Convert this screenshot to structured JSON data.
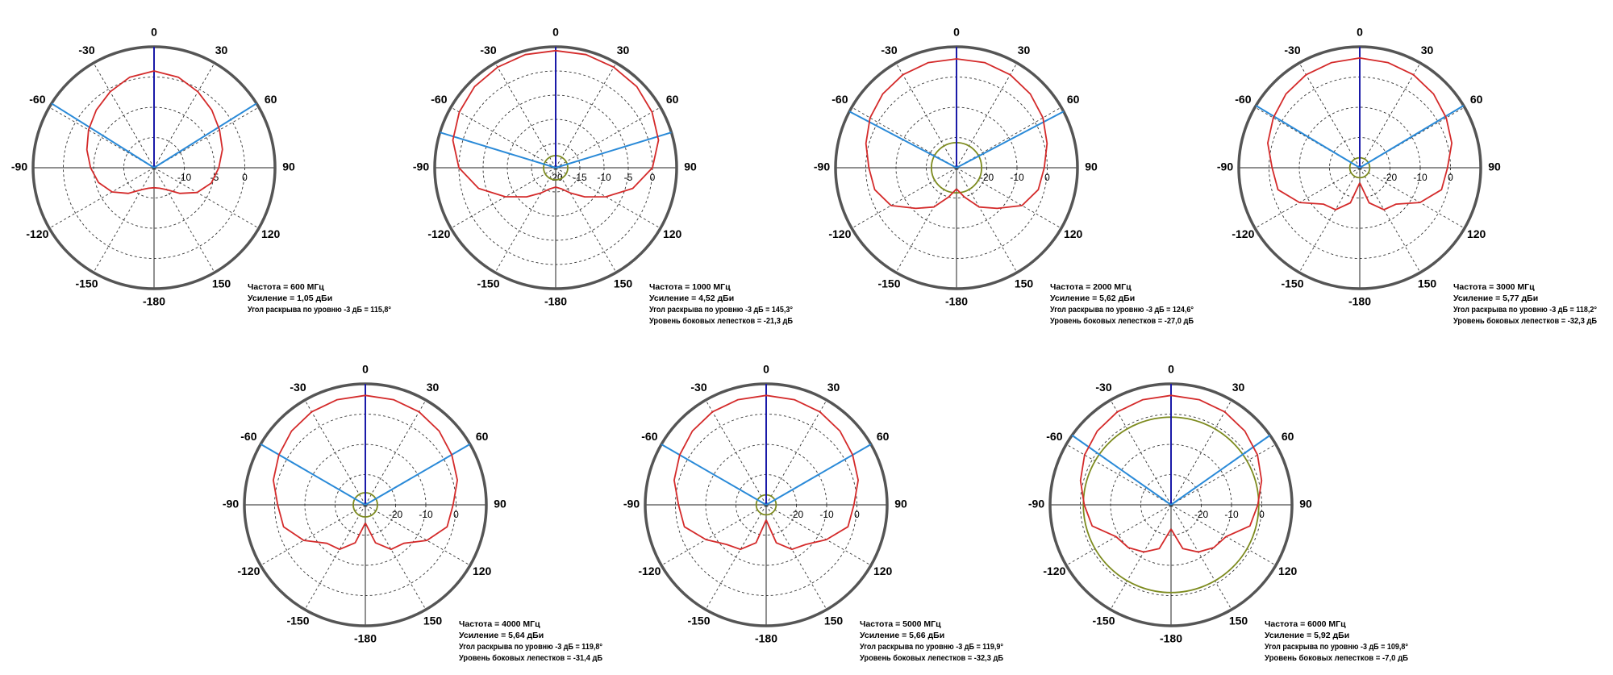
{
  "chart_data": [
    {
      "type": "polar",
      "thetaticks": [
        0,
        30,
        60,
        90,
        120,
        150,
        -180,
        -150,
        -120,
        -90,
        -60,
        -30
      ],
      "rlim": [
        -15,
        5
      ],
      "rticks": [
        -10,
        -5,
        0
      ],
      "series": [
        {
          "color": "#d42a2a",
          "theta": [
            -180,
            -165,
            -150,
            -135,
            -120,
            -105,
            -90,
            -75,
            -60,
            -45,
            -30,
            -15,
            0,
            15,
            30,
            45,
            60,
            75,
            90,
            105,
            120,
            135,
            150,
            165,
            180
          ],
          "values": [
            -11.7,
            -11.5,
            -10.8,
            -9,
            -7,
            -5.5,
            -4.5,
            -3.5,
            -2.5,
            -1.5,
            -0.5,
            0.5,
            1,
            0.5,
            -0.5,
            -1.5,
            -2.5,
            -3.3,
            -4.3,
            -5.2,
            -6.8,
            -9,
            -10.8,
            -11.5,
            -11.7
          ]
        }
      ],
      "lines": [
        {
          "color": "#1a1aa8",
          "angles": [
            0
          ]
        },
        {
          "color": "#2a8ad8",
          "angles": [
            -57.9,
            57.9
          ]
        }
      ],
      "annotations": [
        "Частота = 600 МГц",
        "Усиление = 1,05 дБи",
        "Угол раскрыва по уровню -3 дБ = 115,8°"
      ]
    },
    {
      "type": "polar",
      "thetaticks": [
        0,
        30,
        60,
        90,
        120,
        150,
        -180,
        -150,
        -120,
        -90,
        -60,
        -30
      ],
      "rlim": [
        -20,
        5
      ],
      "rticks": [
        -20,
        -15,
        -10,
        -5,
        0
      ],
      "series": [
        {
          "color": "#d42a2a",
          "theta": [
            -180,
            -165,
            -150,
            -135,
            -120,
            -105,
            -90,
            -75,
            -60,
            -45,
            -30,
            -15,
            0,
            15,
            30,
            45,
            60,
            75,
            90,
            105,
            120,
            135,
            150,
            165,
            180
          ],
          "values": [
            -16,
            -15.5,
            -14,
            -11.5,
            -8,
            -3.5,
            0,
            2,
            3,
            3.7,
            4,
            4.2,
            4.2,
            4.2,
            4,
            3.7,
            3,
            2,
            0,
            -3.5,
            -8,
            -11.5,
            -14,
            -15.5,
            -16
          ]
        }
      ],
      "lines": [
        {
          "color": "#1a1aa8",
          "angles": [
            0
          ]
        },
        {
          "color": "#2a8ad8",
          "angles": [
            -73,
            73
          ]
        }
      ],
      "ring": {
        "color": "#7d8b1f",
        "value": -17.5
      },
      "annotations": [
        "Частота = 1000 МГц",
        "Усиление = 4,52 дБи",
        "Угол раскрыва по уровню -3 дБ = 145,3°",
        "Уровень боковых лепестков = -21,3 дБ"
      ]
    },
    {
      "type": "polar",
      "thetaticks": [
        0,
        30,
        60,
        90,
        120,
        150,
        -180,
        -150,
        -120,
        -90,
        -60,
        -30
      ],
      "rlim": [
        -30,
        10
      ],
      "rticks": [
        -20,
        -10,
        0
      ],
      "series": [
        {
          "color": "#d42a2a",
          "theta": [
            -180,
            -165,
            -150,
            -135,
            -120,
            -105,
            -90,
            -75,
            -60,
            -45,
            -30,
            -15,
            0,
            15,
            30,
            45,
            60,
            75,
            90,
            105,
            120,
            135,
            150,
            165,
            180
          ],
          "values": [
            -23,
            -20,
            -15,
            -11,
            -5,
            -2,
            -1,
            1,
            3,
            4.5,
            5.5,
            6,
            6,
            6,
            5.5,
            4.5,
            3,
            1,
            -1,
            -2,
            -5,
            -11,
            -15,
            -20,
            -23
          ]
        }
      ],
      "lines": [
        {
          "color": "#1a1aa8",
          "angles": [
            0
          ]
        },
        {
          "color": "#2a8ad8",
          "angles": [
            -62.3,
            62.3
          ]
        }
      ],
      "ring": {
        "color": "#7d8b1f",
        "value": -21.7
      },
      "annotations": [
        "Частота = 2000 МГц",
        "Усиление = 5,62 дБи",
        "Угол раскрыва по уровню -3 дБ = 124,6°",
        "Уровень боковых лепестков = -27,0 дБ"
      ]
    },
    {
      "type": "polar",
      "thetaticks": [
        0,
        30,
        60,
        90,
        120,
        150,
        -180,
        -150,
        -120,
        -90,
        -60,
        -30
      ],
      "rlim": [
        -30,
        10
      ],
      "rticks": [
        -20,
        -10,
        0
      ],
      "series": [
        {
          "color": "#d42a2a",
          "theta": [
            -180,
            -165,
            -150,
            -135,
            -120,
            -105,
            -90,
            -75,
            -60,
            -45,
            -30,
            -15,
            0,
            15,
            30,
            45,
            60,
            75,
            90,
            105,
            120,
            135,
            150,
            165,
            180
          ],
          "values": [
            -25,
            -18,
            -14,
            -13,
            -7,
            -2,
            -1,
            1.5,
            3,
            4.5,
            5.5,
            6,
            6.3,
            6,
            5.5,
            4.5,
            3,
            1.5,
            -1,
            -2,
            -7,
            -13,
            -14,
            -18,
            -25
          ]
        }
      ],
      "lines": [
        {
          "color": "#1a1aa8",
          "angles": [
            0
          ]
        },
        {
          "color": "#2a8ad8",
          "angles": [
            -59.1,
            59.1
          ]
        }
      ],
      "ring": {
        "color": "#7d8b1f",
        "value": -26.7
      },
      "annotations": [
        "Частота = 3000 МГц",
        "Усиление = 5,77 дБи",
        "Угол раскрыва по уровню -3 дБ = 118,2°",
        "Уровень боковых лепестков = -32,3 дБ"
      ]
    },
    {
      "type": "polar",
      "thetaticks": [
        0,
        30,
        60,
        90,
        120,
        150,
        -180,
        -150,
        -120,
        -90,
        -60,
        -30
      ],
      "rlim": [
        -30,
        10
      ],
      "rticks": [
        -20,
        -10,
        0
      ],
      "series": [
        {
          "color": "#d42a2a",
          "theta": [
            -180,
            -165,
            -150,
            -135,
            -120,
            -105,
            -90,
            -75,
            -60,
            -45,
            -30,
            -15,
            0,
            15,
            30,
            45,
            60,
            75,
            90,
            105,
            120,
            135,
            150,
            165,
            180
          ],
          "values": [
            -24,
            -17,
            -13,
            -12,
            -6.5,
            -2,
            -1,
            1.5,
            3,
            4.5,
            5.5,
            6,
            6.2,
            6,
            5.5,
            4.5,
            3,
            1.5,
            -1,
            -2,
            -6.5,
            -12,
            -13,
            -17,
            -24
          ]
        }
      ],
      "lines": [
        {
          "color": "#1a1aa8",
          "angles": [
            0
          ]
        },
        {
          "color": "#2a8ad8",
          "angles": [
            -59.9,
            59.9
          ]
        }
      ],
      "ring": {
        "color": "#7d8b1f",
        "value": -26
      },
      "annotations": [
        "Частота = 4000 МГц",
        "Усиление = 5,64 дБи",
        "Угол раскрыва по уровню -3 дБ = 119,8°",
        "Уровень боковых лепестков = -31,4 дБ"
      ]
    },
    {
      "type": "polar",
      "thetaticks": [
        0,
        30,
        60,
        90,
        120,
        150,
        -180,
        -150,
        -120,
        -90,
        -60,
        -30
      ],
      "rlim": [
        -30,
        10
      ],
      "rticks": [
        -20,
        -10,
        0
      ],
      "series": [
        {
          "color": "#d42a2a",
          "theta": [
            -180,
            -165,
            -150,
            -135,
            -120,
            -105,
            -90,
            -75,
            -60,
            -45,
            -30,
            -15,
            0,
            15,
            30,
            45,
            60,
            75,
            90,
            105,
            120,
            135,
            150,
            165,
            180
          ],
          "values": [
            -25,
            -17,
            -13,
            -11.5,
            -7,
            -2,
            -1,
            1.5,
            3,
            4.5,
            5.5,
            6,
            6.2,
            6,
            5.5,
            4.5,
            3,
            1.5,
            -1,
            -2,
            -7,
            -11.5,
            -13,
            -17,
            -25
          ]
        }
      ],
      "lines": [
        {
          "color": "#1a1aa8",
          "angles": [
            0
          ]
        },
        {
          "color": "#2a8ad8",
          "angles": [
            -60,
            60
          ]
        }
      ],
      "ring": {
        "color": "#7d8b1f",
        "value": -26.7
      },
      "annotations": [
        "Частота = 5000 МГц",
        "Усиление = 5,66 дБи",
        "Угол раскрыва по уровню -3 дБ = 119,9°",
        "Уровень боковых лепестков = -32,3 дБ"
      ]
    },
    {
      "type": "polar",
      "thetaticks": [
        0,
        30,
        60,
        90,
        120,
        150,
        -180,
        -150,
        -120,
        -90,
        -60,
        -30
      ],
      "rlim": [
        -30,
        10
      ],
      "rticks": [
        -20,
        -10,
        0
      ],
      "series": [
        {
          "color": "#d42a2a",
          "theta": [
            -180,
            -165,
            -150,
            -135,
            -120,
            -105,
            -90,
            -75,
            -60,
            -45,
            -30,
            -15,
            0,
            15,
            30,
            45,
            60,
            75,
            90,
            105,
            120,
            135,
            150,
            165,
            180
          ],
          "values": [
            -22,
            -15,
            -12,
            -10,
            -9,
            -3,
            -1.3,
            1,
            3,
            4.5,
            5.5,
            6,
            6.2,
            6,
            5.5,
            4.5,
            3,
            1,
            -1.3,
            -3,
            -9,
            -10,
            -12,
            -15,
            -22
          ]
        }
      ],
      "lines": [
        {
          "color": "#1a1aa8",
          "angles": [
            0
          ]
        },
        {
          "color": "#2a8ad8",
          "angles": [
            -54.9,
            54.9
          ]
        }
      ],
      "ring": {
        "color": "#7d8b1f",
        "value": -1
      },
      "annotations": [
        "Частота = 6000 МГц",
        "Усиление = 5,92 дБи",
        "Угол раскрыва по уровню -3 дБ = 109,8°",
        "Уровень боковых лепестков = -7,0 дБ"
      ]
    }
  ]
}
